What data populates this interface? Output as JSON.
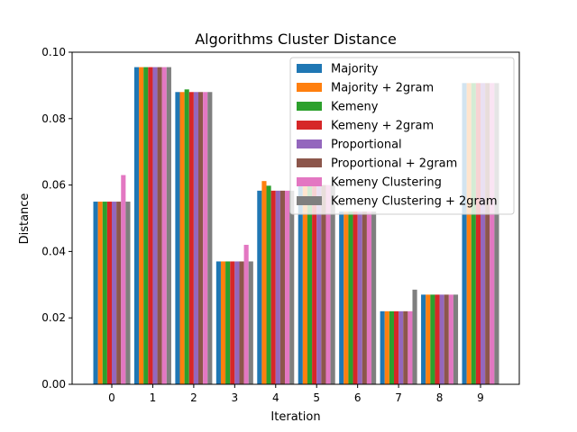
{
  "chart_data": {
    "type": "bar",
    "title": "Algorithms Cluster Distance",
    "xlabel": "Iteration",
    "ylabel": "Distance",
    "ylim": [
      0,
      0.1
    ],
    "yticks": [
      "0.00",
      "0.02",
      "0.04",
      "0.06",
      "0.08",
      "0.10"
    ],
    "categories": [
      "0",
      "1",
      "2",
      "3",
      "4",
      "5",
      "6",
      "7",
      "8",
      "9"
    ],
    "grid": false,
    "legend_position": "top-right",
    "series": [
      {
        "name": "Majority",
        "color": "#1f77b4",
        "values": [
          0.055,
          0.0955,
          0.088,
          0.037,
          0.0583,
          0.06,
          0.052,
          0.022,
          0.027,
          0.0907
        ]
      },
      {
        "name": "Majority + 2gram",
        "color": "#ff7f0e",
        "values": [
          0.055,
          0.0955,
          0.088,
          0.037,
          0.0612,
          0.06,
          0.052,
          0.022,
          0.027,
          0.0907
        ]
      },
      {
        "name": "Kemeny",
        "color": "#2ca02c",
        "values": [
          0.055,
          0.0955,
          0.0888,
          0.037,
          0.0598,
          0.06,
          0.052,
          0.022,
          0.027,
          0.0907
        ]
      },
      {
        "name": "Kemeny + 2gram",
        "color": "#d62728",
        "values": [
          0.055,
          0.0955,
          0.088,
          0.037,
          0.0583,
          0.06,
          0.052,
          0.022,
          0.027,
          0.0907
        ]
      },
      {
        "name": "Proportional",
        "color": "#9467bd",
        "values": [
          0.055,
          0.0955,
          0.088,
          0.037,
          0.0583,
          0.06,
          0.052,
          0.022,
          0.027,
          0.0907
        ]
      },
      {
        "name": "Proportional + 2gram",
        "color": "#8c564b",
        "values": [
          0.055,
          0.0955,
          0.088,
          0.037,
          0.0583,
          0.06,
          0.052,
          0.022,
          0.027,
          0.0907
        ]
      },
      {
        "name": "Kemeny Clustering",
        "color": "#e377c2",
        "values": [
          0.063,
          0.0955,
          0.088,
          0.042,
          0.0583,
          0.06,
          0.052,
          0.022,
          0.027,
          0.0907
        ]
      },
      {
        "name": "Kemeny Clustering + 2gram",
        "color": "#7f7f7f",
        "values": [
          0.055,
          0.0955,
          0.088,
          0.037,
          0.0583,
          0.06,
          0.052,
          0.0285,
          0.027,
          0.0907
        ]
      }
    ]
  }
}
